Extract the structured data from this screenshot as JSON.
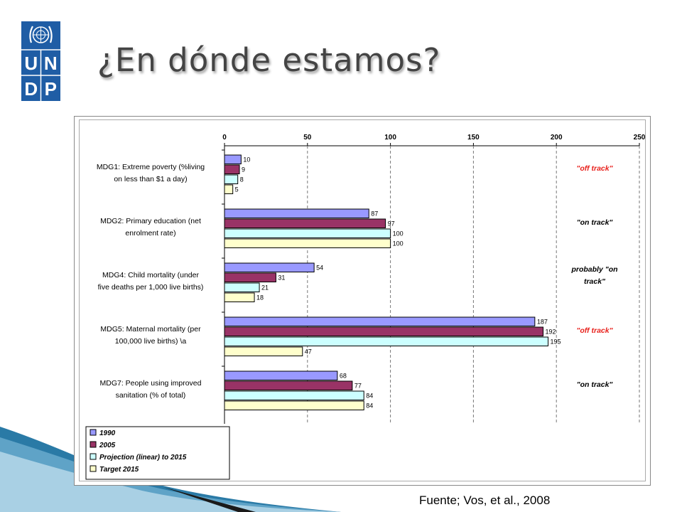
{
  "slide": {
    "title": "¿En dónde estamos?",
    "source": "Fuente; Vos, et al., 2008",
    "logo_letters": [
      "U",
      "N",
      "D",
      "P"
    ]
  },
  "colors": {
    "logo_blue": "#1f5da5",
    "title_text": "#444444",
    "off_track": "#e8211c",
    "decor_teal": "#2a7aa6"
  },
  "chart_data": {
    "type": "bar",
    "orientation": "horizontal",
    "xlim": [
      0,
      250
    ],
    "xticks": [
      0,
      50,
      100,
      150,
      200,
      250
    ],
    "grid": "dashed vertical",
    "legend_placement": "bottom-left",
    "categories": [
      {
        "lines": [
          "MDG1: Extreme poverty (%living",
          "on less than $1 a day)"
        ],
        "status": "\"off track\"",
        "status_lines": [
          "\"off track\""
        ],
        "off": true
      },
      {
        "lines": [
          "MDG2: Primary education (net",
          "enrolment rate)"
        ],
        "status": "\"on track\"",
        "status_lines": [
          "\"on track\""
        ],
        "off": false
      },
      {
        "lines": [
          "MDG4: Child mortality (under",
          "five deaths per 1,000 live births)"
        ],
        "status": "probably \"on track\"",
        "status_lines": [
          "probably \"on",
          "track\""
        ],
        "off": false
      },
      {
        "lines": [
          "MDG5: Maternal mortality (per",
          "100,000 live births) \\a"
        ],
        "status": "\"off track\"",
        "status_lines": [
          "\"off track\""
        ],
        "off": true
      },
      {
        "lines": [
          "MDG7: People using improved",
          "sanitation (% of total)"
        ],
        "status": "\"on track\"",
        "status_lines": [
          "\"on track\""
        ],
        "off": false
      }
    ],
    "series": [
      {
        "name": "1990",
        "color": "#9999ff",
        "values": [
          10,
          87,
          54,
          187,
          68
        ]
      },
      {
        "name": "2005",
        "color": "#993366",
        "values": [
          9,
          97,
          31,
          192,
          77
        ]
      },
      {
        "name": "Projection (linear) to 2015",
        "color": "#ccffff",
        "values": [
          8,
          100,
          21,
          195,
          84
        ]
      },
      {
        "name": "Target 2015",
        "color": "#ffffcc",
        "values": [
          5,
          100,
          18,
          47,
          84
        ]
      }
    ]
  }
}
